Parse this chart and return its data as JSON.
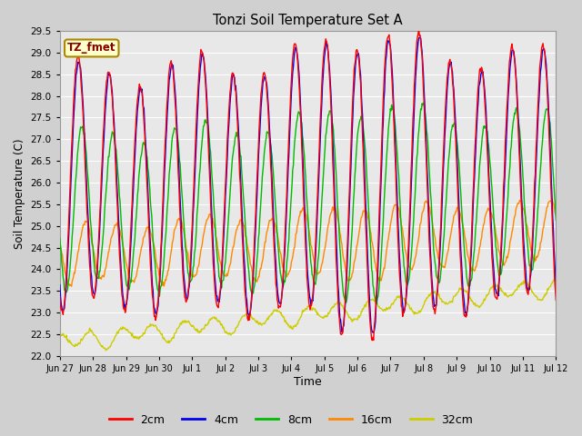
{
  "title": "Tonzi Soil Temperature Set A",
  "xlabel": "Time",
  "ylabel": "Soil Temperature (C)",
  "ylim": [
    22.0,
    29.5
  ],
  "yticks": [
    22.0,
    22.5,
    23.0,
    23.5,
    24.0,
    24.5,
    25.0,
    25.5,
    26.0,
    26.5,
    27.0,
    27.5,
    28.0,
    28.5,
    29.0,
    29.5
  ],
  "fig_bg_color": "#d0d0d0",
  "plot_bg_color": "#e8e8e8",
  "grid_color": "#ffffff",
  "line_colors": {
    "2cm": "#ff0000",
    "4cm": "#0000ee",
    "8cm": "#00bb00",
    "16cm": "#ff8800",
    "32cm": "#cccc00"
  },
  "legend_label": "TZ_fmet",
  "xtick_labels": [
    "Jun 27",
    "Jun 28",
    "Jun 29",
    "Jun 30",
    "Jul 1",
    "Jul 2",
    "Jul 3",
    "Jul 4",
    "Jul 5",
    "Jul 6",
    "Jul 7",
    "Jul 8",
    "Jul 9",
    "Jul 10",
    "Jul 11",
    "Jul 12"
  ],
  "annotation_box_facecolor": "#ffffcc",
  "annotation_box_edgecolor": "#aa8800",
  "annotation_text_color": "#880000",
  "figsize": [
    6.4,
    4.8
  ],
  "dpi": 100
}
